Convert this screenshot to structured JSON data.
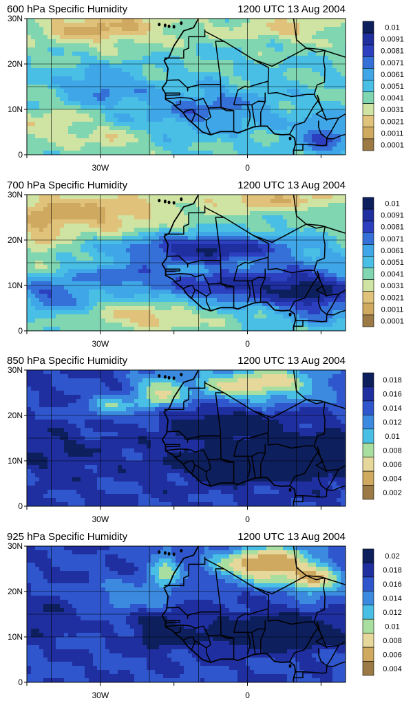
{
  "figure": {
    "time_label": "1200 UTC 13 Aug 2004",
    "lat_labels": [
      "30N",
      "20N",
      "10N",
      "0"
    ],
    "lon_labels": [
      "30W",
      "0"
    ],
    "palette": [
      "#9c7a45",
      "#b9904c",
      "#cfa95f",
      "#e0c27a",
      "#e6d89a",
      "#cfe3a2",
      "#a8dfa0",
      "#7fd6b0",
      "#5ccfd0",
      "#49bfe6",
      "#3fa6e8",
      "#3b8ae0",
      "#3570d8",
      "#2f56cc",
      "#2b3fbf",
      "#1f2fa0",
      "#142780",
      "#0d1f5c"
    ],
    "panels": [
      {
        "title": "600 hPa Specific Humidity",
        "pattern": "p600",
        "legend": [
          "0.01",
          "0.0091",
          "0.0081",
          "0.0071",
          "0.0061",
          "0.0051",
          "0.0041",
          "0.0031",
          "0.0021",
          "0.0011",
          "0.0001"
        ]
      },
      {
        "title": "700 hPa Specific Humidity",
        "pattern": "p700",
        "legend": [
          "0.01",
          "0.0091",
          "0.0081",
          "0.0071",
          "0.0061",
          "0.0051",
          "0.0041",
          "0.0031",
          "0.0021",
          "0.0011",
          "0.0001"
        ]
      },
      {
        "title": "850 hPa Specific Humidity",
        "pattern": "p850",
        "legend": [
          "0.018",
          "0.016",
          "0.014",
          "0.012",
          "0.01",
          "0.008",
          "0.006",
          "0.004",
          "0.002"
        ]
      },
      {
        "title": "925 hPa Specific Humidity",
        "pattern": "p925",
        "legend": [
          "0.02",
          "0.018",
          "0.016",
          "0.014",
          "0.012",
          "0.01",
          "0.008",
          "0.006",
          "0.004"
        ]
      }
    ]
  }
}
